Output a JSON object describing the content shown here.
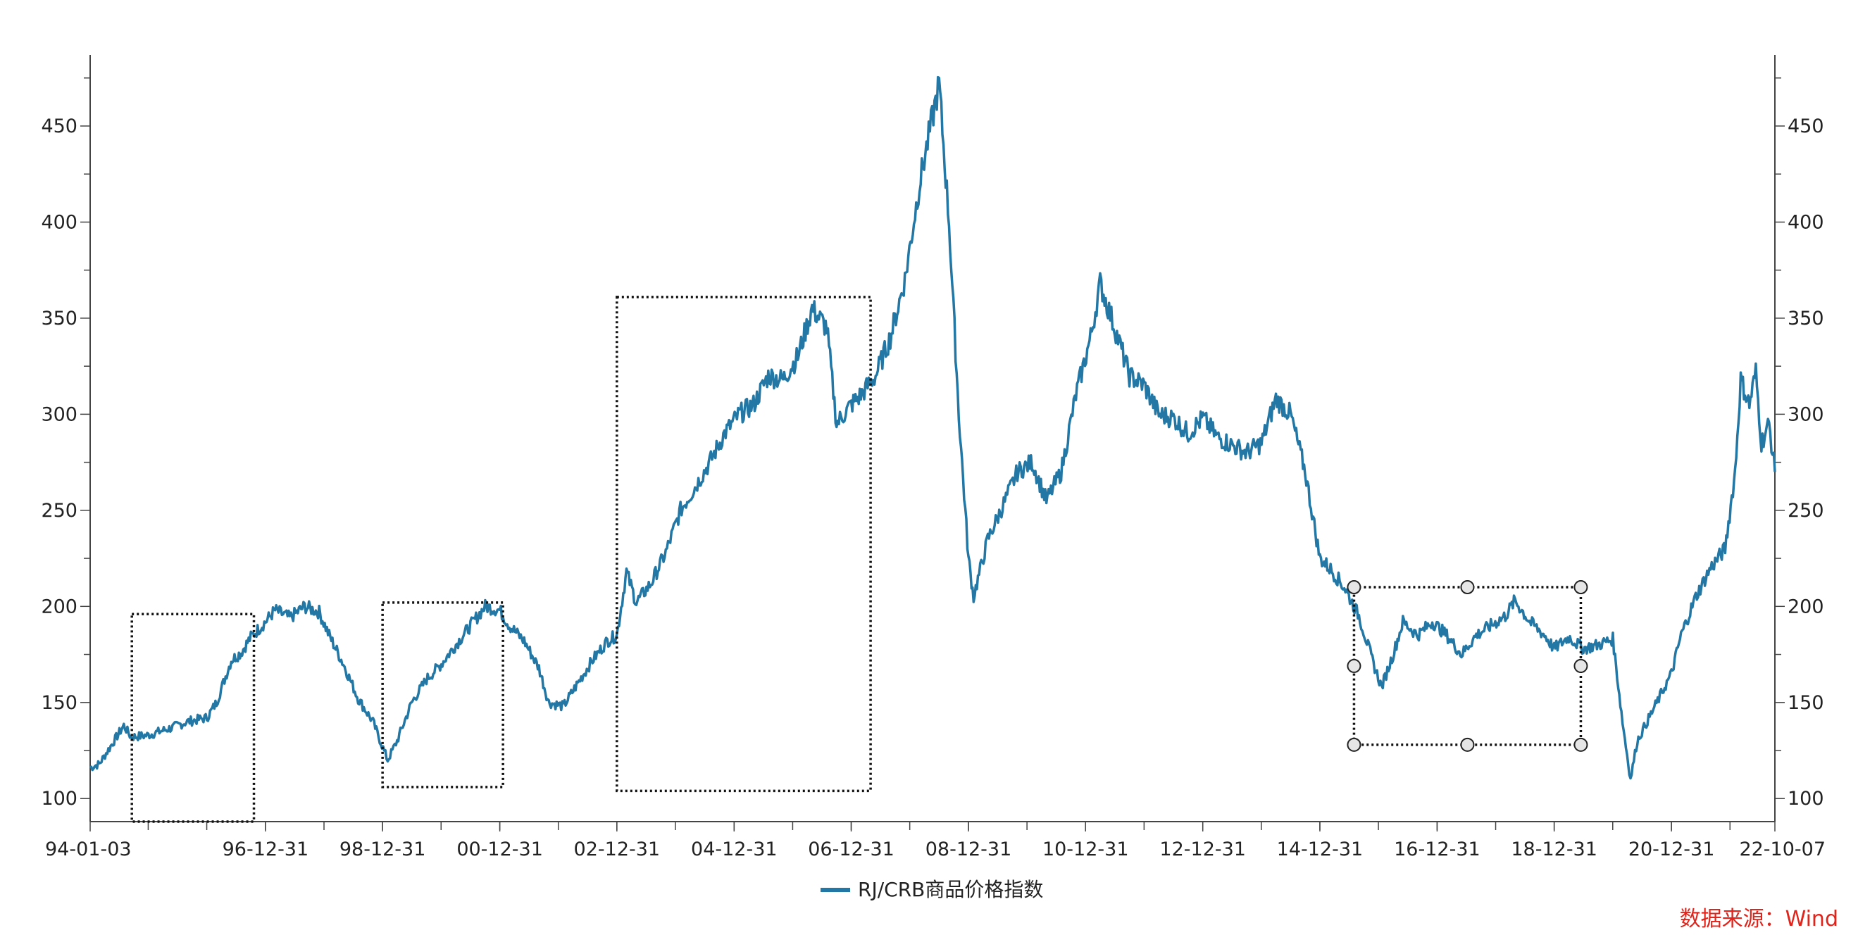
{
  "chart_data": {
    "type": "line",
    "series": [
      {
        "name": "RJ/CRB商品价格指数",
        "color": "#2277a4",
        "points": [
          [
            "1994-01-03",
            116
          ],
          [
            "1994-03-01",
            118
          ],
          [
            "1994-06-01",
            130
          ],
          [
            "1994-08-01",
            138
          ],
          [
            "1994-09-15",
            132
          ],
          [
            "1995-01-01",
            133
          ],
          [
            "1995-06-01",
            137
          ],
          [
            "1995-09-01",
            140
          ],
          [
            "1996-01-01",
            142
          ],
          [
            "1996-03-01",
            150
          ],
          [
            "1996-06-01",
            172
          ],
          [
            "1996-08-01",
            176
          ],
          [
            "1996-10-01",
            184
          ],
          [
            "1996-12-31",
            192
          ],
          [
            "1997-03-01",
            198
          ],
          [
            "1997-06-01",
            194
          ],
          [
            "1997-09-01",
            200
          ],
          [
            "1997-12-01",
            197
          ],
          [
            "1998-02-01",
            185
          ],
          [
            "1998-05-01",
            170
          ],
          [
            "1998-08-01",
            152
          ],
          [
            "1998-11-01",
            140
          ],
          [
            "1999-02-01",
            120
          ],
          [
            "1999-04-01",
            130
          ],
          [
            "1999-07-01",
            150
          ],
          [
            "1999-10-01",
            162
          ],
          [
            "2000-01-01",
            170
          ],
          [
            "2000-04-01",
            180
          ],
          [
            "2000-07-01",
            190
          ],
          [
            "2000-10-01",
            200
          ],
          [
            "2000-12-31",
            198
          ],
          [
            "2001-03-01",
            190
          ],
          [
            "2001-06-01",
            182
          ],
          [
            "2001-09-01",
            168
          ],
          [
            "2001-11-01",
            150
          ],
          [
            "2002-02-01",
            148
          ],
          [
            "2002-05-01",
            160
          ],
          [
            "2002-08-01",
            172
          ],
          [
            "2002-11-01",
            182
          ],
          [
            "2002-12-31",
            185
          ],
          [
            "2003-03-01",
            218
          ],
          [
            "2003-05-01",
            202
          ],
          [
            "2003-08-01",
            212
          ],
          [
            "2003-11-01",
            228
          ],
          [
            "2004-02-01",
            250
          ],
          [
            "2004-05-01",
            262
          ],
          [
            "2004-08-01",
            275
          ],
          [
            "2004-11-01",
            290
          ],
          [
            "2005-02-01",
            300
          ],
          [
            "2005-05-01",
            305
          ],
          [
            "2005-08-01",
            320
          ],
          [
            "2005-11-01",
            318
          ],
          [
            "2006-02-01",
            330
          ],
          [
            "2006-05-01",
            355
          ],
          [
            "2006-08-01",
            345
          ],
          [
            "2006-10-01",
            295
          ],
          [
            "2006-12-31",
            305
          ],
          [
            "2007-03-01",
            310
          ],
          [
            "2007-06-01",
            320
          ],
          [
            "2007-09-01",
            340
          ],
          [
            "2007-12-01",
            370
          ],
          [
            "2008-03-01",
            420
          ],
          [
            "2008-07-01",
            472
          ],
          [
            "2008-09-01",
            400
          ],
          [
            "2008-11-01",
            300
          ],
          [
            "2008-12-31",
            225
          ],
          [
            "2009-02-01",
            205
          ],
          [
            "2009-05-01",
            235
          ],
          [
            "2009-08-01",
            252
          ],
          [
            "2009-11-01",
            270
          ],
          [
            "2010-02-01",
            275
          ],
          [
            "2010-05-01",
            255
          ],
          [
            "2010-08-01",
            270
          ],
          [
            "2010-11-01",
            310
          ],
          [
            "2011-02-01",
            340
          ],
          [
            "2011-04-01",
            368
          ],
          [
            "2011-07-01",
            345
          ],
          [
            "2011-10-01",
            320
          ],
          [
            "2012-01-01",
            315
          ],
          [
            "2012-04-01",
            300
          ],
          [
            "2012-07-01",
            298
          ],
          [
            "2012-10-01",
            290
          ],
          [
            "2013-01-01",
            298
          ],
          [
            "2013-04-01",
            288
          ],
          [
            "2013-07-01",
            284
          ],
          [
            "2013-10-01",
            280
          ],
          [
            "2014-01-01",
            285
          ],
          [
            "2014-04-01",
            308
          ],
          [
            "2014-07-01",
            300
          ],
          [
            "2014-10-01",
            270
          ],
          [
            "2014-12-31",
            225
          ],
          [
            "2015-03-01",
            220
          ],
          [
            "2015-06-01",
            210
          ],
          [
            "2015-09-01",
            195
          ],
          [
            "2015-12-01",
            170
          ],
          [
            "2016-01-20",
            158
          ],
          [
            "2016-04-01",
            175
          ],
          [
            "2016-06-01",
            192
          ],
          [
            "2016-09-01",
            185
          ],
          [
            "2016-12-01",
            192
          ],
          [
            "2017-03-01",
            185
          ],
          [
            "2017-06-01",
            175
          ],
          [
            "2017-09-01",
            185
          ],
          [
            "2017-12-01",
            190
          ],
          [
            "2018-03-01",
            195
          ],
          [
            "2018-05-01",
            203
          ],
          [
            "2018-08-01",
            192
          ],
          [
            "2018-11-01",
            185
          ],
          [
            "2018-12-31",
            178
          ],
          [
            "2019-04-01",
            184
          ],
          [
            "2019-07-01",
            178
          ],
          [
            "2019-10-01",
            180
          ],
          [
            "2020-01-01",
            183
          ],
          [
            "2020-03-01",
            140
          ],
          [
            "2020-04-20",
            110
          ],
          [
            "2020-06-01",
            130
          ],
          [
            "2020-09-01",
            145
          ],
          [
            "2020-12-31",
            165
          ],
          [
            "2021-03-01",
            185
          ],
          [
            "2021-06-01",
            205
          ],
          [
            "2021-09-01",
            220
          ],
          [
            "2021-12-01",
            230
          ],
          [
            "2022-02-01",
            270
          ],
          [
            "2022-03-08",
            318
          ],
          [
            "2022-05-01",
            305
          ],
          [
            "2022-06-10",
            322
          ],
          [
            "2022-07-15",
            285
          ],
          [
            "2022-09-01",
            295
          ],
          [
            "2022-10-07",
            270
          ]
        ]
      }
    ],
    "x_tick_labels": [
      "94-01-03",
      "96-12-31",
      "98-12-31",
      "00-12-31",
      "02-12-31",
      "04-12-31",
      "06-12-31",
      "08-12-31",
      "10-12-31",
      "12-12-31",
      "14-12-31",
      "16-12-31",
      "18-12-31",
      "20-12-31",
      "22-10-07"
    ],
    "x_range": [
      "1994-01-03",
      "2022-10-07"
    ],
    "y_ticks": [
      100,
      150,
      200,
      250,
      300,
      350,
      400,
      450
    ],
    "ylim": [
      88,
      487
    ],
    "y_axis_both_sides": true,
    "grid": false,
    "legend_position": "bottom-center",
    "annotations": [
      {
        "type": "dotted-box",
        "x_from": "1994-09-20",
        "x_to": "1996-10-20",
        "y_from": 88,
        "y_to": 196
      },
      {
        "type": "dotted-box",
        "x_from": "1998-12-31",
        "x_to": "2001-01-20",
        "y_from": 106,
        "y_to": 202
      },
      {
        "type": "dotted-box",
        "x_from": "2002-12-31",
        "x_to": "2007-05-01",
        "y_from": 104,
        "y_to": 361
      },
      {
        "type": "dotted-box-with-handles",
        "x_from": "2015-08-01",
        "x_to": "2019-06-15",
        "y_from": 128,
        "y_to": 210
      }
    ]
  },
  "source_text": "数据来源：Wind",
  "source_color": "#e0241b",
  "axis_color": "#444444",
  "box_color": "#111111"
}
